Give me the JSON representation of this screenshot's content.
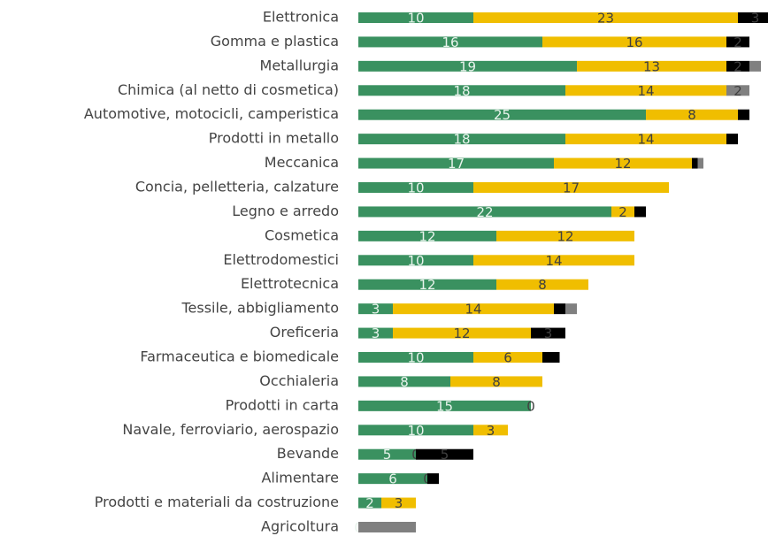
{
  "chart_data": {
    "type": "stacked-barh",
    "categories": [
      "Elettronica",
      "Gomma e plastica",
      "Metallurgia",
      "Chimica (al netto di cosmetica)",
      "Automotive, motocicli, camperistica",
      "Prodotti in metallo",
      "Meccanica",
      "Concia, pelletteria, calzature",
      "Legno e arredo",
      "Cosmetica",
      "Elettrodomestici",
      "Elettrotecnica",
      "Tessile, abbigliamento",
      "Oreficeria",
      "Farmaceutica e biomedicale",
      "Occhialeria",
      "Prodotti in carta",
      "Navale, ferroviario, aerospazio",
      "Bevande",
      "Alimentare",
      "Prodotti e materiali da costruzione",
      "Agricoltura"
    ],
    "series": [
      {
        "color": "#3a9160",
        "label_color": "#e8f3ec",
        "values": [
          10,
          16,
          19,
          18,
          25,
          18,
          17,
          10,
          22,
          12,
          10,
          12,
          3,
          3,
          10,
          8,
          15,
          10,
          5,
          6,
          2,
          0
        ],
        "value_labels": [
          "10",
          "16",
          "19",
          "18",
          "25",
          "18",
          "17",
          "10",
          "22",
          "12",
          "10",
          "12",
          "3",
          "3",
          "10",
          "8",
          "15",
          "10",
          "5",
          "6",
          "2",
          "0"
        ]
      },
      {
        "color": "#f0be00",
        "label_color": "#404040",
        "values": [
          23,
          16,
          13,
          14,
          8,
          14,
          12,
          17,
          2,
          12,
          14,
          8,
          14,
          12,
          6,
          8,
          0,
          3,
          0,
          0,
          3,
          0
        ],
        "value_labels": [
          "23",
          "16",
          "13",
          "14",
          "8",
          "14",
          "12",
          "17",
          "2",
          "12",
          "14",
          "8",
          "14",
          "12",
          "6",
          "8",
          "0",
          "3",
          "0",
          "0",
          "3",
          null
        ]
      },
      {
        "color": "#000000",
        "label_color": "#404040",
        "values": [
          3,
          2,
          2,
          0,
          1,
          1,
          0.5,
          0,
          1,
          0,
          0,
          0,
          1,
          3,
          1.5,
          0,
          0,
          0,
          5,
          1,
          0,
          0
        ],
        "value_labels": [
          "3",
          "2",
          "2",
          null,
          null,
          null,
          null,
          null,
          null,
          null,
          null,
          null,
          null,
          "3",
          null,
          null,
          null,
          null,
          "5",
          null,
          null,
          null
        ]
      },
      {
        "color": "#808080",
        "label_color": "#404040",
        "values": [
          0,
          0,
          1,
          2,
          0,
          0,
          0.5,
          0,
          0,
          0,
          0,
          0,
          1,
          0,
          0,
          0,
          0,
          0,
          0,
          0,
          0,
          5
        ],
        "value_labels": [
          null,
          null,
          null,
          "2",
          null,
          null,
          null,
          null,
          null,
          null,
          null,
          null,
          null,
          null,
          null,
          null,
          null,
          null,
          null,
          null,
          null,
          null
        ]
      }
    ]
  }
}
